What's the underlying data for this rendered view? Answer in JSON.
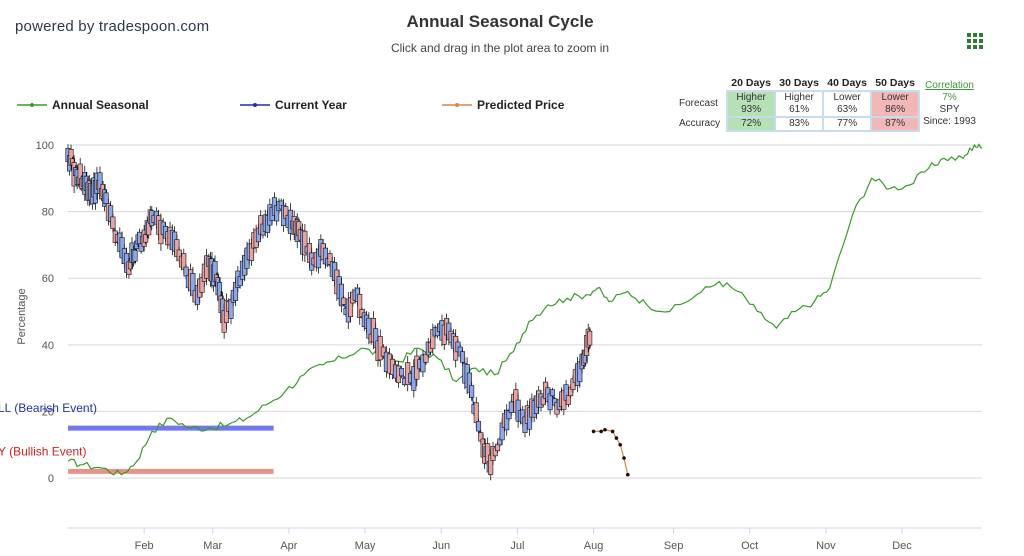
{
  "brand": "powered by tradespoon.com",
  "title": "Annual Seasonal Cycle",
  "subtitle": "Click and drag in the plot area to zoom in",
  "legend": {
    "annual": "Annual Seasonal",
    "current": "Current Year",
    "predicted": "Predicted Price"
  },
  "colors": {
    "annual": "#3a9a2a",
    "current": "#1f2fa8",
    "predicted": "#e0804a",
    "bear": "#7478ee",
    "bull": "#e8928a"
  },
  "forecast_table": {
    "headers": [
      "20 Days",
      "30 Days",
      "40 Days",
      "50 Days"
    ],
    "row1_label": "Forecast",
    "row2_label": "Accuracy",
    "forecast": [
      {
        "dir": "Higher",
        "pct": "93%",
        "style": "hi"
      },
      {
        "dir": "Higher",
        "pct": "61%",
        "style": ""
      },
      {
        "dir": "Lower",
        "pct": "63%",
        "style": ""
      },
      {
        "dir": "Lower",
        "pct": "86%",
        "style": "lo"
      }
    ],
    "accuracy": [
      {
        "pct": "72%",
        "style": "hi"
      },
      {
        "pct": "83%",
        "style": ""
      },
      {
        "pct": "77%",
        "style": ""
      },
      {
        "pct": "87%",
        "style": "lo"
      }
    ],
    "correlation_label": "Correlation",
    "correlation_value": "7%",
    "symbol": "SPY",
    "since": "Since: 1993"
  },
  "chart_data": {
    "type": "line",
    "ylabel": "Percentage",
    "ylim": [
      -15,
      100
    ],
    "yticks": [
      0,
      20,
      40,
      60,
      80,
      100
    ],
    "xlim": [
      0,
      12
    ],
    "xticks": [
      {
        "label": "Feb",
        "x": 1
      },
      {
        "label": "Mar",
        "x": 1.9
      },
      {
        "label": "Apr",
        "x": 2.9
      },
      {
        "label": "May",
        "x": 3.9
      },
      {
        "label": "Jun",
        "x": 4.9
      },
      {
        "label": "Jul",
        "x": 5.9
      },
      {
        "label": "Aug",
        "x": 6.9
      },
      {
        "label": "Sep",
        "x": 7.95
      },
      {
        "label": "Oct",
        "x": 8.95
      },
      {
        "label": "Nov",
        "x": 9.95
      },
      {
        "label": "Dec",
        "x": 10.95
      }
    ],
    "bands": [
      {
        "label": "LL (Bearish Event)",
        "y": 15,
        "x0": 0,
        "x1": 2.7,
        "color": "#7478ee"
      },
      {
        "label": "Y (Bullish Event)",
        "y": 2,
        "x0": 0,
        "x1": 2.7,
        "color": "#e8928a"
      }
    ],
    "series": [
      {
        "name": "Annual Seasonal",
        "key": "annual",
        "x": [
          0,
          0.2,
          0.45,
          0.7,
          0.9,
          1.1,
          1.35,
          1.6,
          1.85,
          2.1,
          2.35,
          2.6,
          2.85,
          3.1,
          3.35,
          3.6,
          3.85,
          4.1,
          4.35,
          4.6,
          4.85,
          5.1,
          5.35,
          5.6,
          5.85,
          6.05,
          6.3,
          6.55,
          6.8,
          6.95,
          7.1,
          7.35,
          7.6,
          7.9,
          8.25,
          8.55,
          8.8,
          9.05,
          9.3,
          9.55,
          9.8,
          10.0,
          10.3,
          10.55,
          10.8,
          11.05,
          11.3,
          11.5,
          11.75,
          11.9,
          12.0
        ],
        "y": [
          5,
          4,
          3,
          1,
          5,
          14,
          18,
          15,
          15,
          16,
          18,
          22,
          26,
          31,
          34,
          36,
          39,
          37,
          35,
          39,
          36,
          29,
          33,
          31,
          38,
          47,
          52,
          54,
          55,
          57,
          53,
          56,
          52,
          50,
          55,
          59,
          56,
          50,
          45,
          50,
          53,
          57,
          79,
          90,
          87,
          88,
          93,
          96,
          96,
          100,
          99
        ]
      },
      {
        "name": "Current Year",
        "key": "current",
        "x": [
          0,
          0.1,
          0.2,
          0.3,
          0.4,
          0.5,
          0.65,
          0.8,
          0.9,
          1.0,
          1.1,
          1.25,
          1.4,
          1.55,
          1.7,
          1.85,
          1.95,
          2.05,
          2.2,
          2.35,
          2.5,
          2.65,
          2.8,
          2.95,
          3.05,
          3.2,
          3.35,
          3.5,
          3.65,
          3.8,
          3.95,
          4.1,
          4.3,
          4.5,
          4.7,
          4.85,
          5.0,
          5.15,
          5.3,
          5.45,
          5.55,
          5.7,
          5.85,
          6.0,
          6.15,
          6.3,
          6.45,
          6.6,
          6.75,
          6.85
        ],
        "y": [
          97,
          92,
          89,
          86,
          88,
          84,
          72,
          63,
          70,
          72,
          78,
          75,
          71,
          62,
          55,
          65,
          60,
          47,
          56,
          66,
          73,
          79,
          82,
          76,
          73,
          65,
          68,
          62,
          50,
          55,
          45,
          39,
          32,
          30,
          36,
          44,
          44,
          38,
          26,
          9,
          4,
          14,
          24,
          16,
          22,
          25,
          22,
          26,
          35,
          42
        ]
      },
      {
        "name": "Predicted Price",
        "key": "predicted",
        "x": [
          6.9,
          7.0,
          7.05,
          7.15,
          7.2,
          7.25,
          7.3,
          7.35
        ],
        "y": [
          14,
          14,
          14.5,
          14,
          12,
          10,
          6,
          1
        ]
      }
    ]
  }
}
